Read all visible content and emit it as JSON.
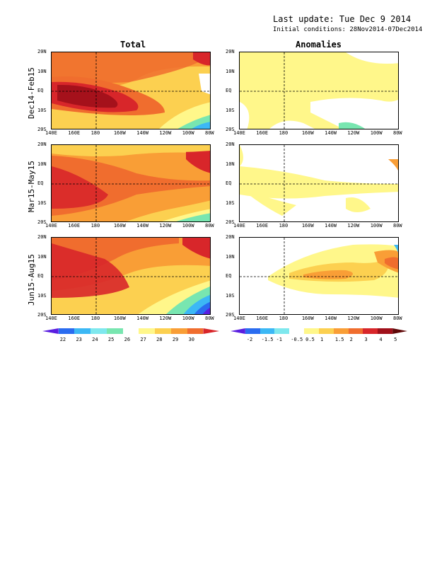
{
  "header": {
    "last_update": "Last update: Tue Dec  9 2014",
    "initial_conditions": "Initial conditions: 28Nov2014-07Dec2014"
  },
  "columns": {
    "total": "Total",
    "anomalies": "Anomalies"
  },
  "rows": [
    "Dec14-Feb15",
    "Mar15-May15",
    "Jun15-Aug15"
  ],
  "lon_ticks": [
    "140E",
    "160E",
    "180",
    "160W",
    "140W",
    "120W",
    "100W",
    "80W"
  ],
  "lat_ticks": [
    "20N",
    "10N",
    "EQ",
    "10S",
    "20S"
  ],
  "total_colorbar": {
    "labels": [
      "22",
      "23",
      "24",
      "25",
      "26",
      "27",
      "28",
      "29",
      "30"
    ],
    "colors": [
      "#5a1ee0",
      "#2a6cf0",
      "#3cb8f5",
      "#7ee8ee",
      "#78e6b0",
      "#ffffff",
      "#fff78a",
      "#fcd050",
      "#f99e36",
      "#f06d2e",
      "#d8262a"
    ]
  },
  "anomaly_colorbar": {
    "labels": [
      "-2",
      "-1.5",
      "-1",
      "-0.5",
      "0.5",
      "1",
      "1.5",
      "2",
      "3",
      "4",
      "5"
    ],
    "colors": [
      "#5a1ee0",
      "#2a6cf0",
      "#3cb8f5",
      "#7ee8ee",
      "#ffffff",
      "#fff78a",
      "#fcd050",
      "#f99e36",
      "#f06d2e",
      "#d8262a",
      "#a0101a",
      "#600808"
    ]
  }
}
